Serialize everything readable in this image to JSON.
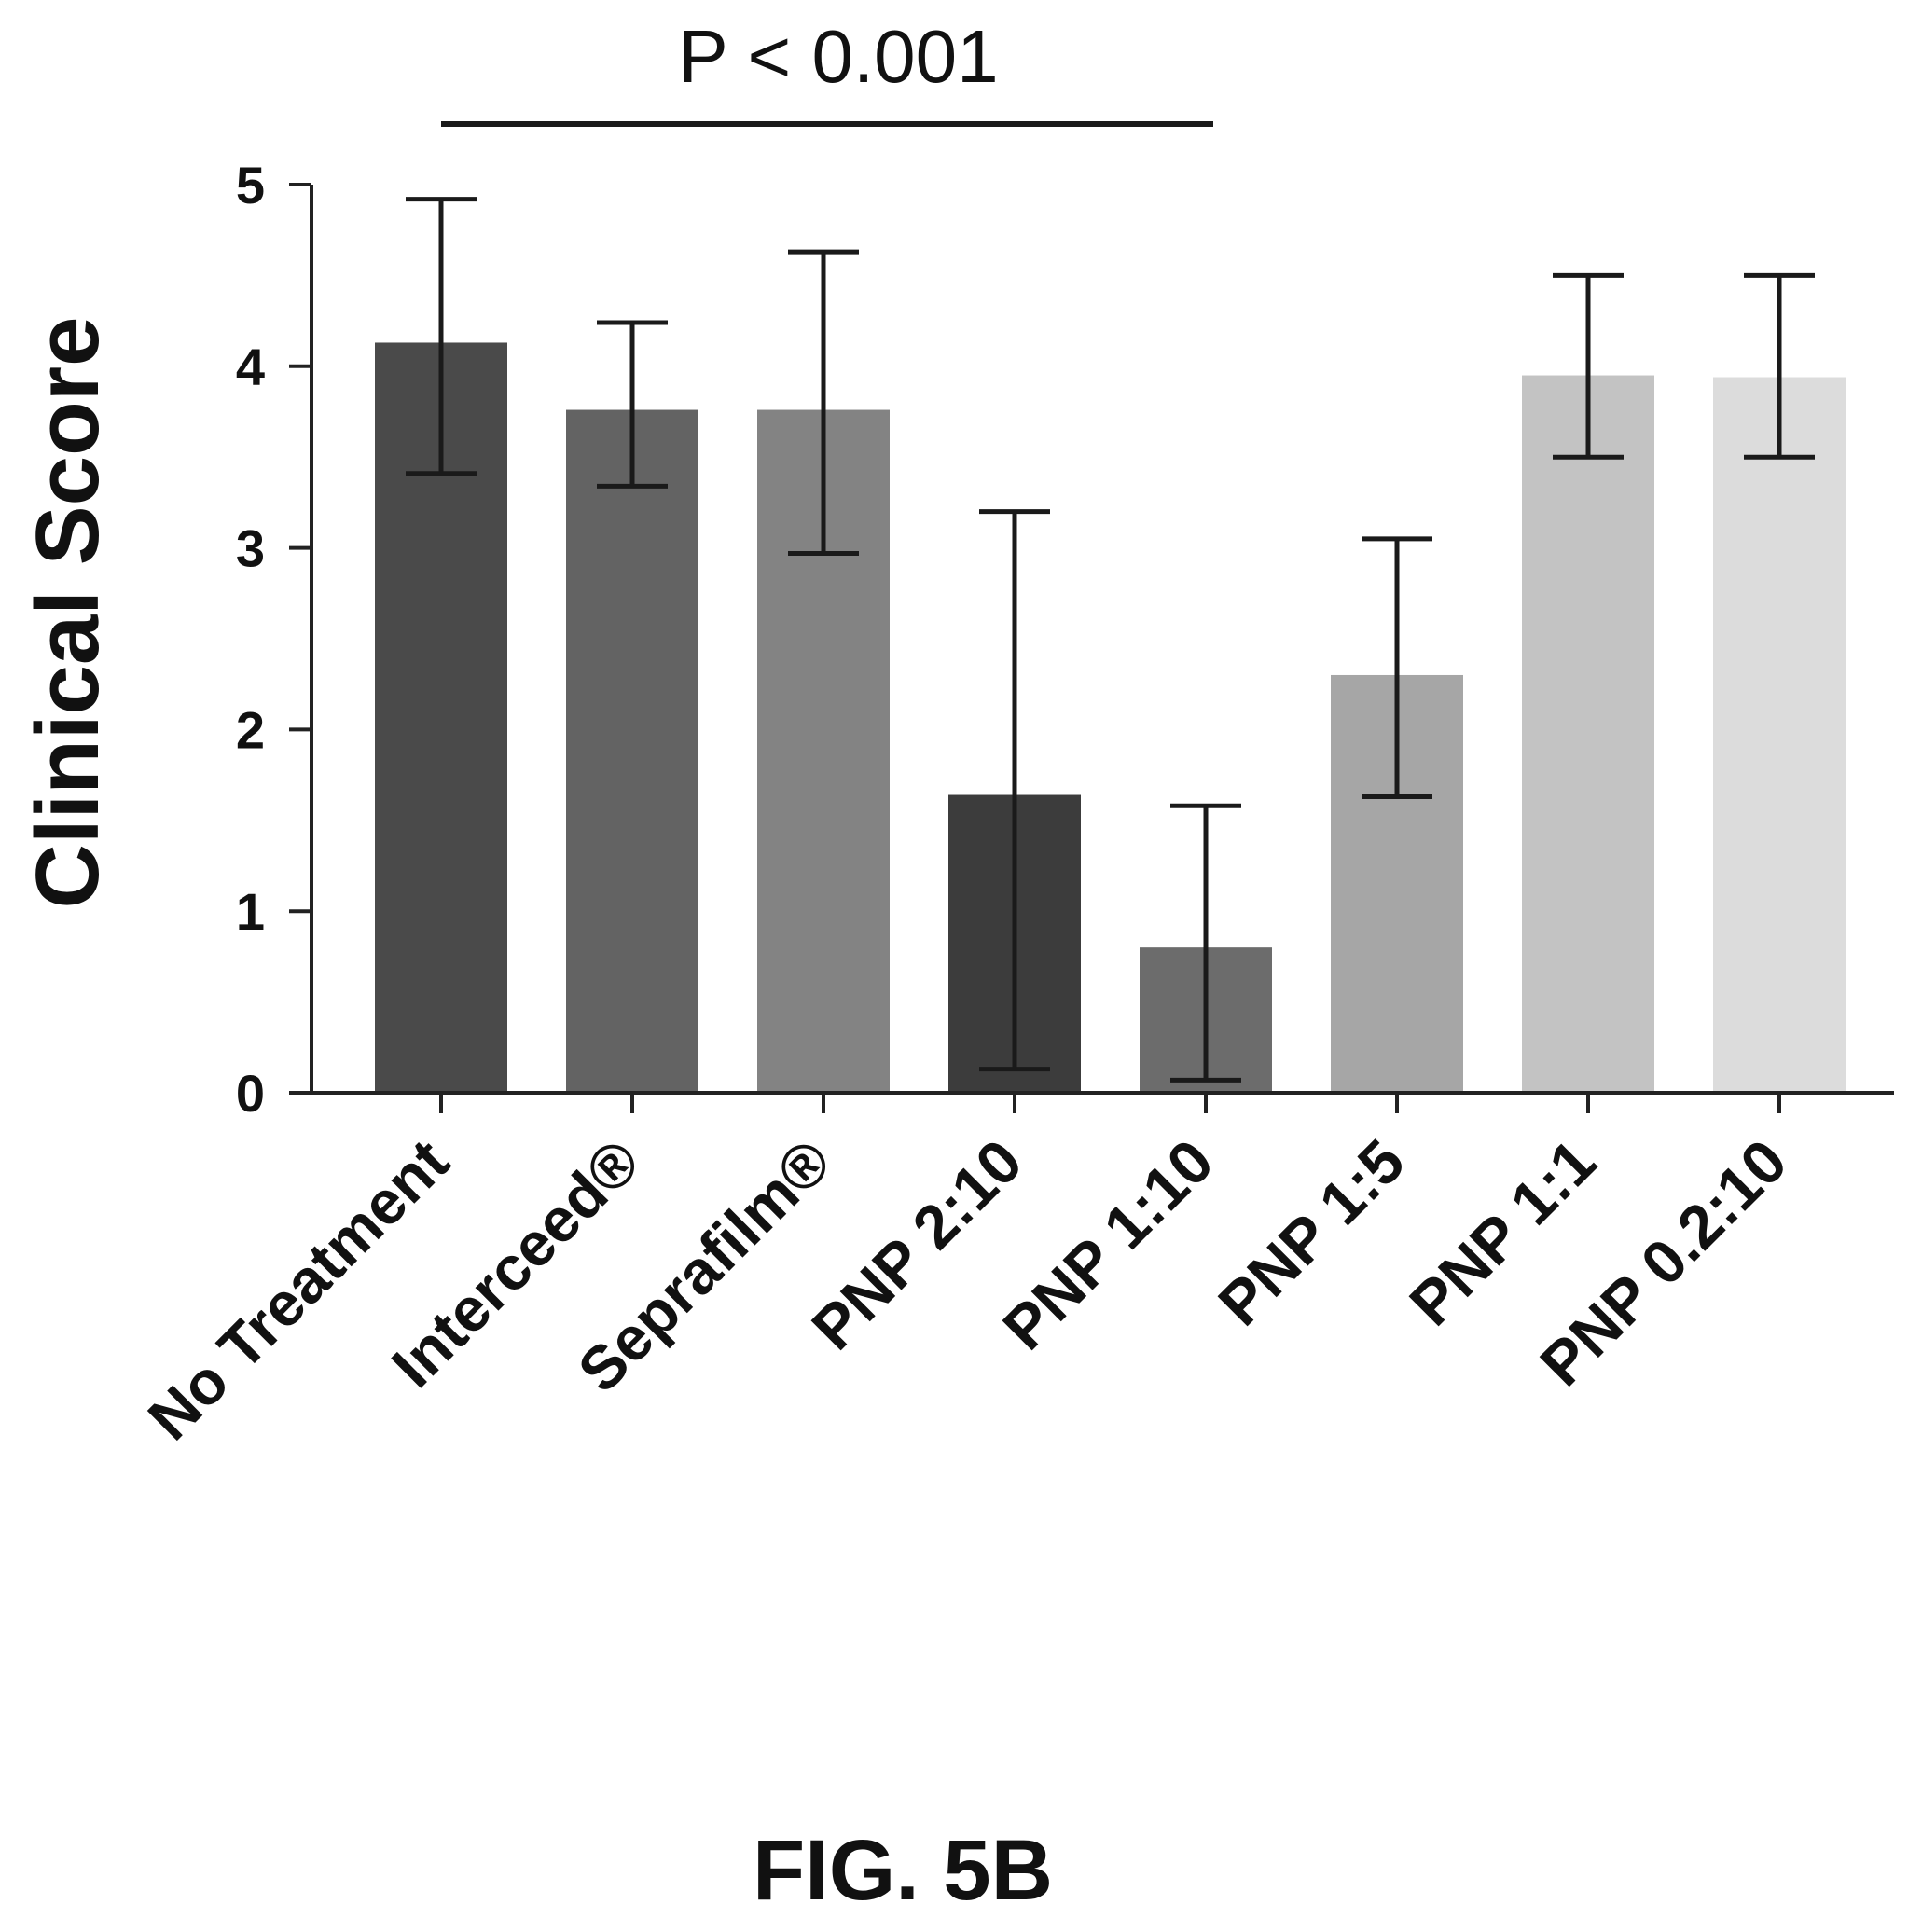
{
  "chart_data": {
    "type": "bar",
    "ylabel": "Clinical Score",
    "ylim": [
      0,
      5
    ],
    "yticks": [
      0,
      1,
      2,
      3,
      4,
      5
    ],
    "categories": [
      "No Treatment",
      "Interceed®",
      "Seprafilm®",
      "PNP 2:10",
      "PNP 1:10",
      "PNP 1:5",
      "PNP 1:1",
      "PNP 0.2:10"
    ],
    "values": [
      4.13,
      3.76,
      3.76,
      1.64,
      0.8,
      2.3,
      3.95,
      3.94
    ],
    "error_low": [
      3.41,
      3.34,
      2.97,
      0.13,
      0.07,
      1.63,
      3.5,
      3.5
    ],
    "error_high": [
      4.92,
      4.24,
      4.63,
      3.2,
      1.58,
      3.05,
      4.5,
      4.5
    ],
    "bar_colors": [
      "#4a4a4a",
      "#636363",
      "#838383",
      "#3c3c3c",
      "#6c6c6c",
      "#a6a6a6",
      "#c3c3c3",
      "#dcdcdc"
    ],
    "annotation": {
      "text": "P < 0.001",
      "from_category": "No Treatment",
      "to_category": "PNP 1:10"
    }
  },
  "figure_label": "FIG. 5B"
}
